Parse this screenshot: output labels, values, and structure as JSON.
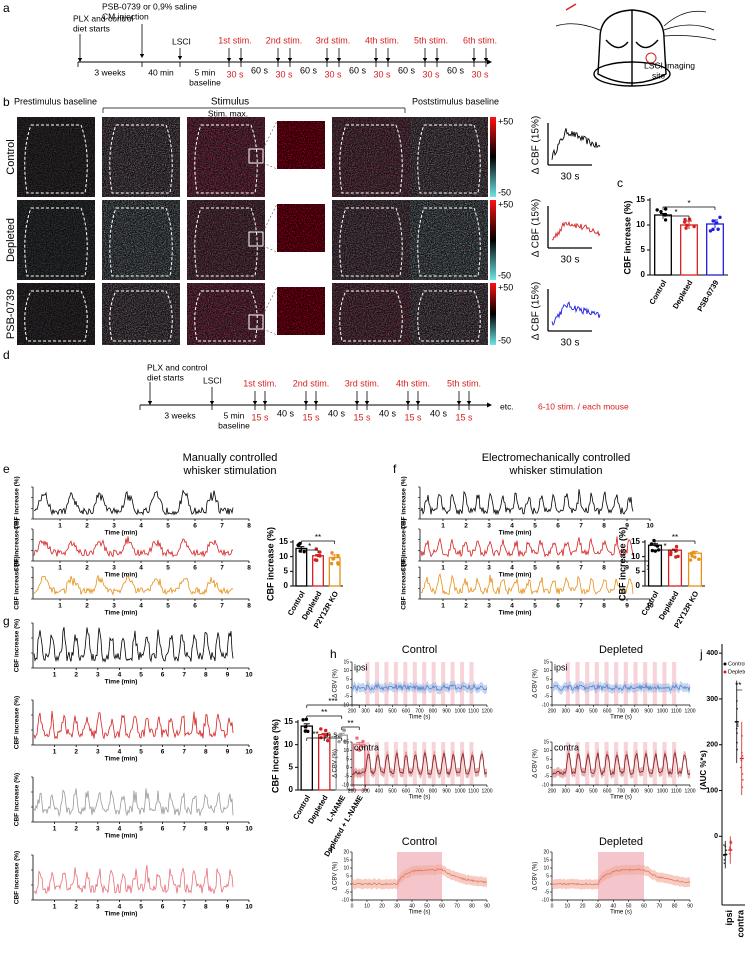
{
  "a": {
    "label": "a",
    "diet": [
      "PLX and control",
      "diet starts"
    ],
    "injection": [
      "PSB-0739 or 0,9% saline",
      "CM injection"
    ],
    "lsci": "LSCI",
    "weeks": "3 weeks",
    "wait": "40 min",
    "baseline": [
      "5 min",
      "baseline"
    ],
    "stims": [
      "1st stim.",
      "2nd stim.",
      "3rd stim.",
      "4th stim.",
      "5th stim.",
      "6th stim."
    ],
    "stim_durations": [
      "30 s",
      "30 s",
      "30 s",
      "30 s",
      "30 s",
      "30 s"
    ],
    "intervals": [
      "60 s",
      "60 s",
      "60 s",
      "60 s",
      "60 s"
    ],
    "site": [
      "LSCI imaging",
      "site"
    ]
  },
  "b": {
    "label": "b",
    "prestimulus": "Prestimulus baseline",
    "stimulus": "Stimulus",
    "stim_max": "Stim. max.",
    "poststimulus": "Poststimulus baseline",
    "rows": [
      "Control",
      "Depleted",
      "PSB-0739"
    ],
    "colorbar": [
      "+50",
      "-50"
    ],
    "trace_ylabel": "Δ CBF (15%)",
    "trace_scale": "30 s",
    "trace_colors": [
      "#000000",
      "#d62020",
      "#1f1fe0"
    ]
  },
  "c": {
    "label": "c",
    "chart_data": {
      "type": "bar",
      "ylabel": "CBF increase (%)",
      "categories": [
        "Control",
        "Depleted",
        "PSB-0739"
      ],
      "values": [
        12,
        10,
        10.2
      ],
      "errors": [
        0.3,
        0.8,
        0.8
      ],
      "colors": [
        "#000000",
        "#d62020",
        "#1f1fe0"
      ],
      "ylim": [
        0,
        15
      ],
      "yticks": [
        0,
        5,
        10,
        15
      ],
      "significance": [
        {
          "label": "*",
          "between": [
            "Control",
            "Depleted"
          ]
        },
        {
          "label": "*",
          "between": [
            "Control",
            "PSB-0739"
          ]
        }
      ]
    }
  },
  "d": {
    "label": "d",
    "diet": [
      "PLX and control",
      "diet starts"
    ],
    "lsci": "LSCI",
    "weeks": "3 weeks",
    "baseline": [
      "5 min",
      "baseline"
    ],
    "stims": [
      "1st stim.",
      "2nd stim.",
      "3rd stim.",
      "4th stim.",
      "5th stim."
    ],
    "stim_durations": [
      "15 s",
      "15 s",
      "15 s",
      "15 s",
      "15 s"
    ],
    "intervals": [
      "40 s",
      "40 s",
      "40 s",
      "40 s"
    ],
    "etc": "etc.",
    "per_mouse": "6-10 stim. / each mouse"
  },
  "e": {
    "label": "e",
    "title": [
      "Manually controlled",
      "whisker stimulation"
    ],
    "traces": {
      "ylabel": "CBF increase (%)",
      "xlabel": "Time (min)",
      "xlim": [
        0,
        8
      ],
      "xticks": [
        1,
        2,
        3,
        4,
        5,
        6,
        7,
        8
      ],
      "colors": [
        "#000000",
        "#d62020",
        "#e8901a"
      ]
    },
    "chart_data": {
      "type": "bar",
      "ylabel": "CBF increase (%)",
      "categories": [
        "Control",
        "Depleted",
        "P2Y12R KO"
      ],
      "values": [
        12.8,
        10.3,
        9.7
      ],
      "errors": [
        0.6,
        0.4,
        0.9
      ],
      "colors": [
        "#000000",
        "#d62020",
        "#e8901a"
      ],
      "ylim": [
        0,
        15
      ],
      "yticks": [
        0,
        5,
        10,
        15
      ],
      "significance": [
        {
          "label": "*",
          "between": [
            "Control",
            "Depleted"
          ]
        },
        {
          "label": "**",
          "between": [
            "Control",
            "P2Y12R KO"
          ]
        }
      ]
    }
  },
  "f": {
    "label": "f",
    "title": [
      "Electromechanically controlled",
      "whisker stimulation"
    ],
    "traces": {
      "ylabel": "CBF increase (%)",
      "xlabel": "Time (min)",
      "xlim": [
        0,
        10
      ],
      "xticks": [
        1,
        2,
        3,
        4,
        5,
        6,
        7,
        8,
        9,
        10
      ],
      "colors": [
        "#000000",
        "#d62020",
        "#e8901a"
      ]
    },
    "chart_data": {
      "type": "bar",
      "ylabel": "CBF increase (%)",
      "categories": [
        "Control",
        "Depleted",
        "P2Y12R KO"
      ],
      "values": [
        13.9,
        12.2,
        11.2
      ],
      "errors": [
        0.5,
        0.4,
        0.6
      ],
      "colors": [
        "#000000",
        "#d62020",
        "#e8901a"
      ],
      "ylim": [
        0,
        15
      ],
      "yticks": [
        0,
        5,
        10,
        15
      ],
      "significance": [
        {
          "label": "*",
          "between": [
            "Control",
            "Depleted"
          ]
        },
        {
          "label": "**",
          "between": [
            "Control",
            "P2Y12R KO"
          ]
        }
      ]
    }
  },
  "g": {
    "label": "g",
    "traces": {
      "ylabel": "CBF increase (%)",
      "xlabel": "Time (min)",
      "xlim": [
        0,
        10
      ],
      "xticks": [
        1,
        2,
        3,
        4,
        5,
        6,
        7,
        8,
        9,
        10
      ],
      "colors": [
        "#000000",
        "#d62020",
        "#9a9a9a",
        "#e8707a"
      ]
    },
    "chart_data": {
      "type": "bar",
      "ylabel": "CBF increase (%)",
      "categories": [
        "Control",
        "Depleted",
        "L-NAME",
        "Depleted + L-NAME"
      ],
      "values": [
        14.1,
        12.2,
        12.1,
        10.1
      ],
      "errors": [
        0.5,
        0.3,
        0.4,
        0.4
      ],
      "colors": [
        "#000000",
        "#d62020",
        "#9a9a9a",
        "#e8707a"
      ],
      "ylim": [
        0,
        15
      ],
      "yticks": [
        0,
        5,
        10,
        15
      ],
      "significance": [
        {
          "label": "**",
          "between": [
            "Control",
            "Depleted"
          ]
        },
        {
          "label": "n.s.",
          "between": [
            "Depleted",
            "L-NAME"
          ]
        },
        {
          "label": "**",
          "between": [
            "L-NAME",
            "Depleted + L-NAME"
          ]
        },
        {
          "label": "**",
          "between": [
            "Control",
            "L-NAME"
          ]
        },
        {
          "label": "***",
          "between": [
            "Control",
            "Depleted + L-NAME"
          ]
        }
      ]
    }
  },
  "h": {
    "label": "h",
    "groups": [
      "Control",
      "Depleted"
    ],
    "sides": [
      "ipsi",
      "contra"
    ],
    "ylabel": "Δ CBV (%)",
    "xlabel": "Time (s)",
    "xlim": [
      200,
      1200
    ],
    "xticks": [
      200,
      300,
      400,
      500,
      600,
      700,
      800,
      900,
      1000,
      1100,
      1200
    ],
    "ylim": [
      -10,
      15
    ],
    "yticks": [
      -10,
      -5,
      0,
      5,
      10,
      15
    ]
  },
  "i": {
    "label": "i",
    "groups": [
      "Control",
      "Depleted"
    ],
    "ylabel": "Δ CBV (%)",
    "xlabel": "Time (s)",
    "xlim": [
      0,
      90
    ],
    "xticks": [
      0,
      10,
      20,
      30,
      40,
      50,
      60,
      70,
      80,
      90
    ],
    "ylim": [
      -10,
      20
    ],
    "yticks": [
      -10,
      -5,
      0,
      5,
      10,
      15,
      20
    ]
  },
  "j": {
    "label": "j",
    "chart_data": {
      "type": "dot",
      "ylabel": "(AUC %*s)",
      "categories": [
        "ipsi",
        "contra"
      ],
      "series": [
        {
          "name": "Control",
          "color": "#000000",
          "values": [
            -40,
            250
          ],
          "errors": [
            30,
            90
          ]
        },
        {
          "name": "Depleted",
          "color": "#d62020",
          "values": [
            -30,
            170
          ],
          "errors": [
            30,
            80
          ]
        }
      ],
      "ylim": [
        -150,
        420
      ],
      "yticks": [
        0,
        100,
        200,
        300,
        400
      ],
      "significance": "**"
    }
  }
}
